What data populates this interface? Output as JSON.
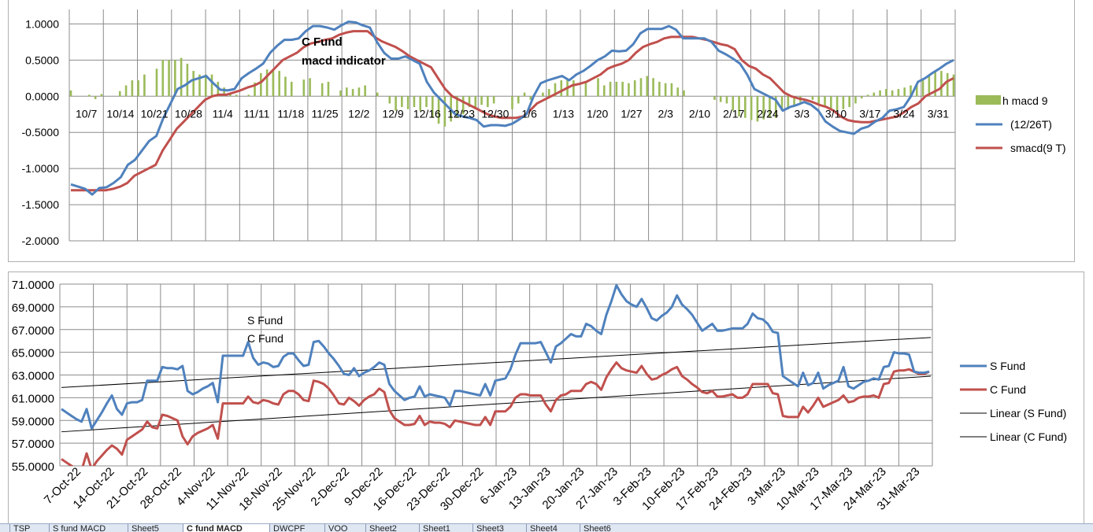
{
  "chart_data": [
    {
      "type": "line",
      "title": "C Fund\nmacd indicator",
      "ylim": [
        -2.0,
        1.2
      ],
      "y_ticks": [
        "1.0000",
        "0.5000",
        "0.0000",
        "-0.5000",
        "-1.0000",
        "-1.5000",
        "-2.0000"
      ],
      "y_tick_values": [
        1.0,
        0.5,
        0.0,
        -0.5,
        -1.0,
        -1.5,
        -2.0
      ],
      "x_ticks": [
        "10/7",
        "10/14",
        "10/21",
        "10/28",
        "11/4",
        "11/11",
        "11/18",
        "11/25",
        "12/2",
        "12/9",
        "12/16",
        "12/23",
        "12/30",
        "1/6",
        "1/13",
        "1/20",
        "1/27",
        "2/3",
        "2/10",
        "2/17",
        "2/24",
        "3/3",
        "3/10",
        "3/17",
        "3/24",
        "3/31"
      ],
      "grid": true,
      "legend_position": "right",
      "colors": {
        "hist": "#9bbb59",
        "macd": "#4f81bd",
        "signal": "#c0504d"
      },
      "series": [
        {
          "name": "h macd 9",
          "kind": "bar",
          "values": [
            0.08,
            0,
            0,
            0.02,
            -0.04,
            0.03,
            0,
            0,
            0.07,
            0.15,
            0.22,
            0.22,
            0.3,
            0,
            0.38,
            0.5,
            0.5,
            0.5,
            0.53,
            0.45,
            0.35,
            0.3,
            0.3,
            0.3,
            0.2,
            0.12,
            0.03,
            0.02,
            0.0,
            0.02,
            0.19,
            0.32,
            0.37,
            0.38,
            0.35,
            0.27,
            0.2,
            0.0,
            0.23,
            0.25,
            0.0,
            0.18,
            0.2,
            0.0,
            0.08,
            0.12,
            0.1,
            0.12,
            0.15,
            0.0,
            0.05,
            0.0,
            -0.1,
            -0.2,
            -0.15,
            -0.18,
            -0.15,
            -0.2,
            -0.15,
            -0.3,
            -0.38,
            -0.42,
            -0.35,
            -0.3,
            -0.25,
            -0.15,
            -0.18,
            -0.12,
            -0.15,
            -0.1,
            0.0,
            0.0,
            -0.18,
            -0.1,
            0.05,
            -0.05,
            0.0,
            0.05,
            0.1,
            0.18,
            0.22,
            0.25,
            0.22,
            0.0,
            0.2,
            0.0,
            0.25,
            0.15,
            0.2,
            0.2,
            0.2,
            0.18,
            0.22,
            0.25,
            0.28,
            0.25,
            0.2,
            0.18,
            0.18,
            0.12,
            0.08,
            0.0,
            0.0,
            0.0,
            0.0,
            -0.05,
            -0.08,
            -0.1,
            -0.2,
            -0.28,
            -0.3,
            -0.33,
            -0.35,
            -0.32,
            -0.3,
            -0.3,
            -0.2,
            -0.18,
            -0.15,
            -0.08,
            0.0,
            -0.05,
            -0.1,
            -0.15,
            -0.18,
            -0.2,
            -0.18,
            -0.15,
            -0.1,
            -0.03,
            0.02,
            0.05,
            0.08,
            0.1,
            0.08,
            0.1,
            0.12,
            0.15,
            0.18,
            0.22,
            0.3,
            0.35,
            0.35,
            0.32,
            0.3
          ]
        },
        {
          "name": "(12/26T)",
          "kind": "line",
          "values": [
            -1.22,
            -1.25,
            -1.28,
            -1.36,
            -1.27,
            -1.26,
            -1.2,
            -1.12,
            -0.95,
            -0.88,
            -0.75,
            -0.62,
            -0.55,
            -0.3,
            -0.1,
            0.1,
            0.15,
            0.22,
            0.25,
            0.28,
            0.18,
            0.09,
            0.08,
            0.1,
            0.25,
            0.32,
            0.38,
            0.45,
            0.6,
            0.7,
            0.78,
            0.78,
            0.8,
            0.9,
            0.97,
            0.97,
            0.95,
            0.92,
            0.98,
            1.03,
            1.02,
            0.98,
            0.95,
            0.75,
            0.6,
            0.52,
            0.52,
            0.55,
            0.5,
            0.45,
            0.2,
            0.05,
            -0.05,
            -0.15,
            -0.25,
            -0.28,
            -0.3,
            -0.33,
            -0.42,
            -0.4,
            -0.4,
            -0.41,
            -0.38,
            -0.32,
            -0.25,
            0.0,
            0.18,
            0.22,
            0.25,
            0.28,
            0.22,
            0.3,
            0.35,
            0.42,
            0.5,
            0.55,
            0.63,
            0.62,
            0.63,
            0.72,
            0.87,
            0.93,
            0.93,
            0.93,
            0.97,
            0.92,
            0.8,
            0.8,
            0.8,
            0.8,
            0.75,
            0.63,
            0.58,
            0.52,
            0.45,
            0.3,
            0.1,
            0.05,
            0.0,
            -0.05,
            -0.2,
            -0.15,
            -0.12,
            -0.08,
            -0.12,
            -0.2,
            -0.35,
            -0.42,
            -0.48,
            -0.5,
            -0.52,
            -0.45,
            -0.42,
            -0.35,
            -0.3,
            -0.2,
            -0.18,
            -0.15,
            0.0,
            0.2,
            0.25,
            0.32,
            0.38,
            0.45,
            0.5
          ]
        },
        {
          "name": "smacd(9 T)",
          "kind": "line",
          "values": [
            -1.3,
            -1.3,
            -1.3,
            -1.3,
            -1.3,
            -1.3,
            -1.28,
            -1.25,
            -1.2,
            -1.1,
            -1.05,
            -1.0,
            -0.95,
            -0.75,
            -0.6,
            -0.45,
            -0.35,
            -0.25,
            -0.15,
            -0.05,
            0.0,
            0.02,
            0.02,
            0.05,
            0.08,
            0.12,
            0.15,
            0.2,
            0.3,
            0.4,
            0.5,
            0.55,
            0.6,
            0.68,
            0.73,
            0.75,
            0.78,
            0.8,
            0.85,
            0.88,
            0.9,
            0.9,
            0.9,
            0.82,
            0.76,
            0.72,
            0.68,
            0.62,
            0.55,
            0.5,
            0.45,
            0.4,
            0.25,
            0.1,
            0.0,
            -0.05,
            -0.1,
            -0.15,
            -0.2,
            -0.25,
            -0.28,
            -0.3,
            -0.3,
            -0.3,
            -0.28,
            -0.2,
            -0.1,
            -0.05,
            0.0,
            0.05,
            0.1,
            0.15,
            0.17,
            0.2,
            0.25,
            0.3,
            0.38,
            0.42,
            0.45,
            0.5,
            0.6,
            0.68,
            0.72,
            0.75,
            0.8,
            0.82,
            0.82,
            0.82,
            0.82,
            0.8,
            0.78,
            0.75,
            0.72,
            0.7,
            0.65,
            0.5,
            0.42,
            0.38,
            0.3,
            0.25,
            0.15,
            0.05,
            0.0,
            -0.03,
            -0.05,
            -0.08,
            -0.12,
            -0.15,
            -0.2,
            -0.28,
            -0.33,
            -0.35,
            -0.36,
            -0.36,
            -0.34,
            -0.32,
            -0.3,
            -0.28,
            -0.22,
            -0.15,
            -0.1,
            0.0,
            0.05,
            0.1,
            0.2,
            0.25
          ]
        }
      ]
    },
    {
      "type": "line",
      "title": "",
      "ylim": [
        55.0,
        71.0
      ],
      "y_ticks": [
        "71.0000",
        "69.0000",
        "67.0000",
        "65.0000",
        "63.0000",
        "61.0000",
        "59.0000",
        "57.0000",
        "55.0000"
      ],
      "y_tick_values": [
        71,
        69,
        67,
        65,
        63,
        61,
        59,
        57,
        55
      ],
      "x_ticks": [
        "7-Oct-22",
        "14-Oct-22",
        "21-Oct-22",
        "28-Oct-22",
        "4-Nov-22",
        "11-Nov-22",
        "18-Nov-22",
        "25-Nov-22",
        "2-Dec-22",
        "9-Dec-22",
        "16-Dec-22",
        "23-Dec-22",
        "30-Dec-22",
        "6-Jan-23",
        "13-Jan-23",
        "20-Jan-23",
        "27-Jan-23",
        "3-Feb-23",
        "10-Feb-23",
        "17-Feb-23",
        "24-Feb-23",
        "3-Mar-23",
        "10-Mar-23",
        "17-Mar-23",
        "24-Mar-23",
        "31-Mar-23"
      ],
      "annotation": [
        "S Fund",
        "C Fund"
      ],
      "grid": true,
      "legend_position": "right",
      "colors": {
        "s": "#4f81bd",
        "c": "#c0504d",
        "trend": "#000000"
      },
      "series": [
        {
          "name": "S Fund",
          "values": [
            60.0,
            59.7,
            59.4,
            59.1,
            58.9,
            60.0,
            58.3,
            59.0,
            59.7,
            60.5,
            61.2,
            60.0,
            59.5,
            60.5,
            60.6,
            60.6,
            60.8,
            62.5,
            62.5,
            62.5,
            63.7,
            63.6,
            63.6,
            63.5,
            63.8,
            61.6,
            61.3,
            61.5,
            61.8,
            62.0,
            62.3,
            60.6,
            64.7,
            64.7,
            64.7,
            64.7,
            64.7,
            65.9,
            64.5,
            63.9,
            64.1,
            64.0,
            63.7,
            63.8,
            64.6,
            64.9,
            64.9,
            64.3,
            63.8,
            63.9,
            65.9,
            66.0,
            65.5,
            64.9,
            64.4,
            63.8,
            63.1,
            63.0,
            63.6,
            62.9,
            63.2,
            63.4,
            63.7,
            64.1,
            63.9,
            62.2,
            61.6,
            61.2,
            60.8,
            61.0,
            61.1,
            62.0,
            61.1,
            61.3,
            61.2,
            61.1,
            61.0,
            60.3,
            61.6,
            61.6,
            61.5,
            61.4,
            61.3,
            61.2,
            62.2,
            61.2,
            62.5,
            62.6,
            62.7,
            63.5,
            64.8,
            65.8,
            65.8,
            65.8,
            65.8,
            65.9,
            65.0,
            64.1,
            65.5,
            65.8,
            66.2,
            66.6,
            66.4,
            66.4,
            67.5,
            67.3,
            66.9,
            66.6,
            68.3,
            69.5,
            70.9,
            70.1,
            69.5,
            69.2,
            69.0,
            69.7,
            68.9,
            68.0,
            67.8,
            68.2,
            68.5,
            69.0,
            70.0,
            69.2,
            68.8,
            68.3,
            67.6,
            66.9,
            67.2,
            67.5,
            66.9,
            66.9,
            67.0,
            67.1,
            67.1,
            67.1,
            67.5,
            68.4,
            68.0,
            67.9,
            67.5,
            66.8,
            66.7,
            62.9,
            62.6,
            62.3,
            62.0,
            63.2,
            62.1,
            62.3,
            63.2,
            61.8,
            62.1,
            62.3,
            62.5,
            63.7,
            62.0,
            61.8,
            62.1,
            62.4,
            62.5,
            62.7,
            62.6,
            63.7,
            63.8,
            65.0,
            64.9,
            64.9,
            64.8,
            63.3,
            63.2,
            63.2,
            63.3
          ]
        },
        {
          "name": "C Fund",
          "values": [
            55.6,
            55.3,
            55.0,
            54.8,
            54.6,
            56.1,
            54.7,
            55.4,
            55.9,
            56.4,
            56.8,
            56.5,
            56.0,
            57.3,
            57.6,
            57.9,
            58.2,
            58.9,
            58.4,
            58.3,
            59.5,
            59.4,
            59.2,
            59.0,
            57.6,
            56.9,
            57.6,
            57.9,
            58.1,
            58.3,
            58.6,
            57.4,
            60.5,
            60.5,
            60.5,
            60.5,
            60.5,
            61.1,
            60.6,
            60.5,
            60.8,
            60.7,
            60.5,
            60.4,
            61.3,
            61.6,
            61.6,
            61.3,
            60.8,
            60.7,
            62.5,
            62.4,
            62.2,
            61.8,
            61.2,
            60.5,
            60.4,
            61.0,
            60.7,
            60.3,
            60.8,
            61.1,
            61.3,
            61.8,
            61.5,
            59.9,
            59.2,
            58.9,
            58.6,
            58.6,
            58.7,
            59.4,
            58.6,
            58.9,
            58.8,
            58.8,
            58.7,
            58.4,
            59.0,
            58.9,
            58.8,
            58.7,
            58.6,
            58.6,
            59.3,
            58.6,
            59.8,
            59.8,
            59.8,
            60.2,
            61.0,
            61.3,
            61.3,
            61.2,
            61.2,
            61.2,
            60.4,
            59.8,
            60.8,
            61.2,
            61.3,
            61.6,
            61.6,
            61.6,
            62.2,
            62.4,
            62.2,
            61.7,
            62.8,
            63.5,
            64.1,
            63.6,
            63.4,
            63.3,
            63.2,
            63.8,
            63.1,
            62.6,
            62.7,
            63.0,
            63.2,
            63.5,
            63.7,
            62.9,
            62.6,
            62.2,
            61.9,
            61.5,
            61.4,
            61.6,
            61.1,
            61.1,
            61.2,
            61.3,
            61.0,
            61.0,
            61.3,
            62.2,
            62.2,
            62.2,
            62.2,
            61.4,
            61.3,
            59.4,
            59.3,
            59.3,
            59.3,
            60.2,
            59.7,
            60.3,
            61.0,
            60.2,
            60.4,
            60.6,
            60.8,
            61.2,
            60.6,
            60.7,
            61.0,
            61.1,
            61.1,
            61.2,
            61.0,
            62.2,
            62.3,
            63.3,
            63.4,
            63.4,
            63.5,
            63.3,
            63.1,
            63.1,
            63.3
          ]
        },
        {
          "name": "Linear (S Fund)",
          "kind": "trend",
          "values": [
            61.9,
            66.3
          ]
        },
        {
          "name": "Linear (C Fund)",
          "kind": "trend",
          "values": [
            58.0,
            62.9
          ]
        }
      ]
    }
  ],
  "sheet_tabs": [
    "TSP",
    "S fund MACD",
    "Sheet5",
    "C fund MACD",
    "DWCPF",
    "VOO",
    "Sheet2",
    "Sheet1",
    "Sheet3",
    "Sheet4",
    "Sheet6"
  ],
  "active_tab": "C fund MACD"
}
